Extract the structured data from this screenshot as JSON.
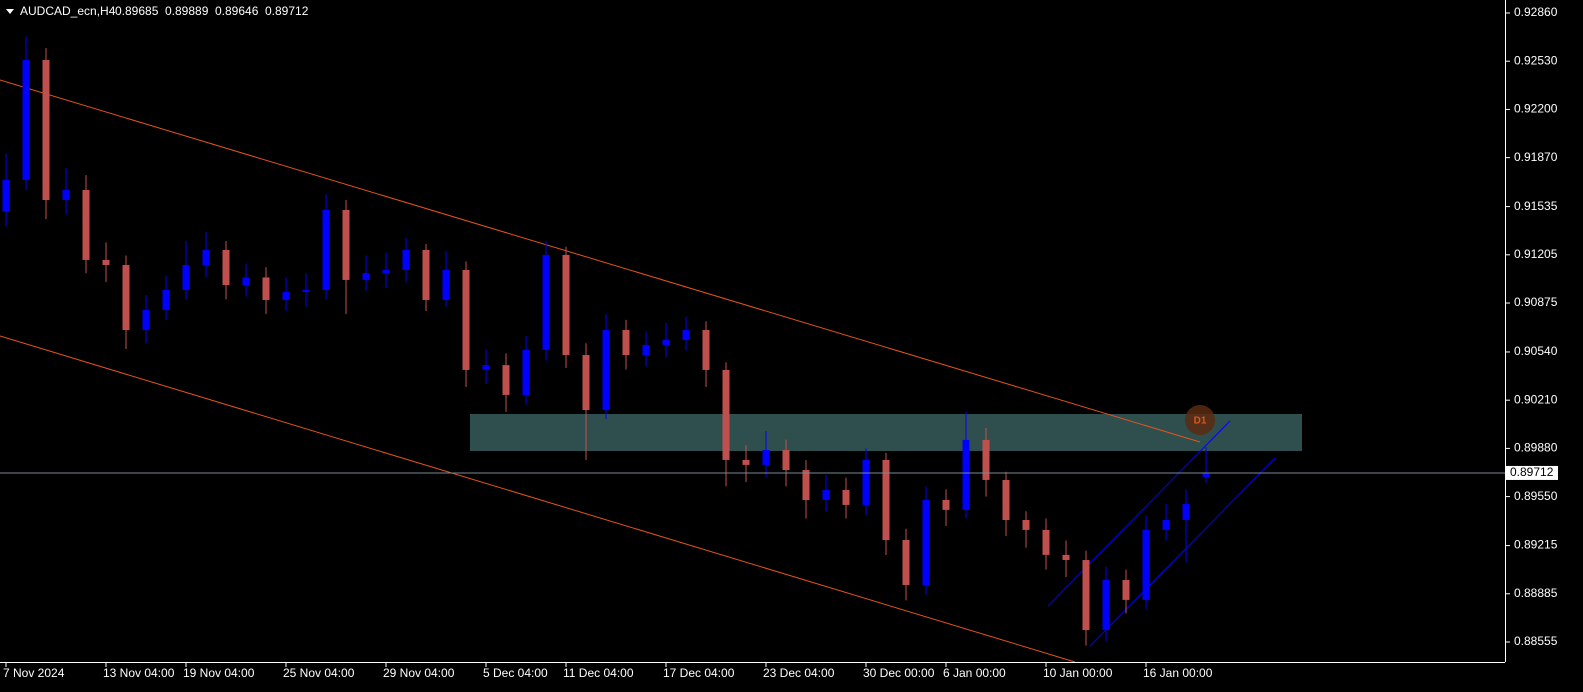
{
  "chart_data": {
    "type": "candlestick",
    "title": "AUDCAD_ecn,H4",
    "categories": [
      "7 Nov 2024",
      null,
      null,
      null,
      null,
      "13 Nov 04:00",
      null,
      null,
      null,
      "19 Nov 04:00",
      null,
      null,
      null,
      null,
      "25 Nov 04:00",
      null,
      null,
      null,
      null,
      "29 Nov 04:00",
      null,
      null,
      null,
      null,
      "5 Dec 04:00",
      null,
      null,
      null,
      "11 Dec 04:00",
      null,
      null,
      null,
      null,
      "17 Dec 04:00",
      null,
      null,
      null,
      null,
      "23 Dec 04:00",
      null,
      null,
      null,
      null,
      "30 Dec 00:00",
      null,
      null,
      null,
      "6 Jan 00:00",
      null,
      null,
      null,
      null,
      "10 Jan 00:00",
      null,
      null,
      null,
      null,
      "16 Jan 00:00",
      null,
      null,
      null
    ],
    "open": [
      0.915,
      0.91717,
      0.92538,
      0.9158,
      0.91649,
      0.9117,
      0.91135,
      0.9069,
      0.90827,
      0.90964,
      0.91135,
      0.91238,
      0.90998,
      0.9105,
      0.90896,
      0.9095,
      0.90964,
      0.91512,
      0.91033,
      0.9108,
      0.91101,
      0.91238,
      0.90896,
      0.91101,
      0.90417,
      0.9045,
      0.90246,
      0.90554,
      0.91204,
      0.90519,
      0.90143,
      0.9069,
      0.90519,
      0.90588,
      0.90622,
      0.9069,
      0.90417,
      0.89801,
      0.89767,
      0.89869,
      0.89732,
      0.89527,
      0.89595,
      0.89493,
      0.89801,
      0.89253,
      0.88945,
      0.89527,
      0.89459,
      0.89938,
      0.89664,
      0.8939,
      0.89322,
      0.89151,
      0.89116,
      0.88637,
      0.88979,
      0.88843,
      0.89322,
      0.8939,
      0.89685
    ],
    "high": [
      0.919,
      0.927,
      0.9262,
      0.918,
      0.9175,
      0.9129,
      0.912,
      0.9093,
      0.9106,
      0.913,
      0.9136,
      0.913,
      0.9114,
      0.9112,
      0.9105,
      0.9108,
      0.9162,
      0.9158,
      0.912,
      0.9122,
      0.9132,
      0.9128,
      0.9123,
      0.9116,
      0.9056,
      0.9053,
      0.9065,
      0.913,
      0.9126,
      0.906,
      0.908,
      0.9076,
      0.9068,
      0.9074,
      0.9078,
      0.9075,
      0.9047,
      0.899,
      0.9,
      0.8994,
      0.898,
      0.897,
      0.8968,
      0.8988,
      0.8985,
      0.8933,
      0.8962,
      0.896,
      0.9013,
      0.9002,
      0.8972,
      0.8945,
      0.894,
      0.8925,
      0.8918,
      0.8907,
      0.8905,
      0.8942,
      0.895,
      0.896,
      0.89889
    ],
    "low": [
      0.914,
      0.9165,
      0.9145,
      0.9148,
      0.9108,
      0.9102,
      0.9056,
      0.906,
      0.9076,
      0.909,
      0.9105,
      0.909,
      0.9092,
      0.908,
      0.9082,
      0.9085,
      0.909,
      0.908,
      0.9096,
      0.9098,
      0.9102,
      0.9082,
      0.9085,
      0.903,
      0.9032,
      0.9013,
      0.9018,
      0.9048,
      0.9043,
      0.898,
      0.9008,
      0.9042,
      0.9044,
      0.905,
      0.9055,
      0.903,
      0.8962,
      0.8965,
      0.8968,
      0.8962,
      0.894,
      0.8945,
      0.894,
      0.8942,
      0.8915,
      0.8884,
      0.8888,
      0.8935,
      0.894,
      0.8955,
      0.8928,
      0.892,
      0.8905,
      0.89,
      0.8853,
      0.8856,
      0.8875,
      0.8878,
      0.8925,
      0.891,
      0.89646
    ],
    "close": [
      0.91717,
      0.92538,
      0.9158,
      0.91649,
      0.9117,
      0.91135,
      0.9069,
      0.90827,
      0.90964,
      0.91135,
      0.91238,
      0.90998,
      0.9105,
      0.90896,
      0.9095,
      0.90964,
      0.91512,
      0.91033,
      0.9108,
      0.91101,
      0.91238,
      0.90896,
      0.91101,
      0.90417,
      0.9045,
      0.90246,
      0.90554,
      0.91204,
      0.90519,
      0.90143,
      0.9069,
      0.90519,
      0.90588,
      0.90622,
      0.9069,
      0.90417,
      0.89801,
      0.89767,
      0.89869,
      0.89732,
      0.89527,
      0.89595,
      0.89493,
      0.89801,
      0.89253,
      0.88945,
      0.89527,
      0.89459,
      0.89938,
      0.89664,
      0.8939,
      0.89322,
      0.89151,
      0.89116,
      0.88637,
      0.88979,
      0.88843,
      0.89322,
      0.8939,
      0.895,
      0.89712
    ],
    "up_color": "#0000ff",
    "down_color": "#c0504d",
    "ylim": [
      0.88418,
      0.92949
    ],
    "yticks": [
      {
        "value": 0.9286,
        "label": "0.92860"
      },
      {
        "value": 0.9253,
        "label": "0.92530"
      },
      {
        "value": 0.922,
        "label": "0.92200"
      },
      {
        "value": 0.9187,
        "label": "0.91870"
      },
      0.91535,
      0.91205,
      0.90875,
      {
        "value": 0.9054,
        "label": "0.90540"
      },
      {
        "value": 0.9021,
        "label": "0.90210"
      },
      {
        "value": 0.8988,
        "label": "0.89880"
      },
      {
        "value": 0.8955,
        "label": "0.89550"
      },
      0.89215,
      0.88885,
      0.88555
    ],
    "annotation": "D1"
  }
}
